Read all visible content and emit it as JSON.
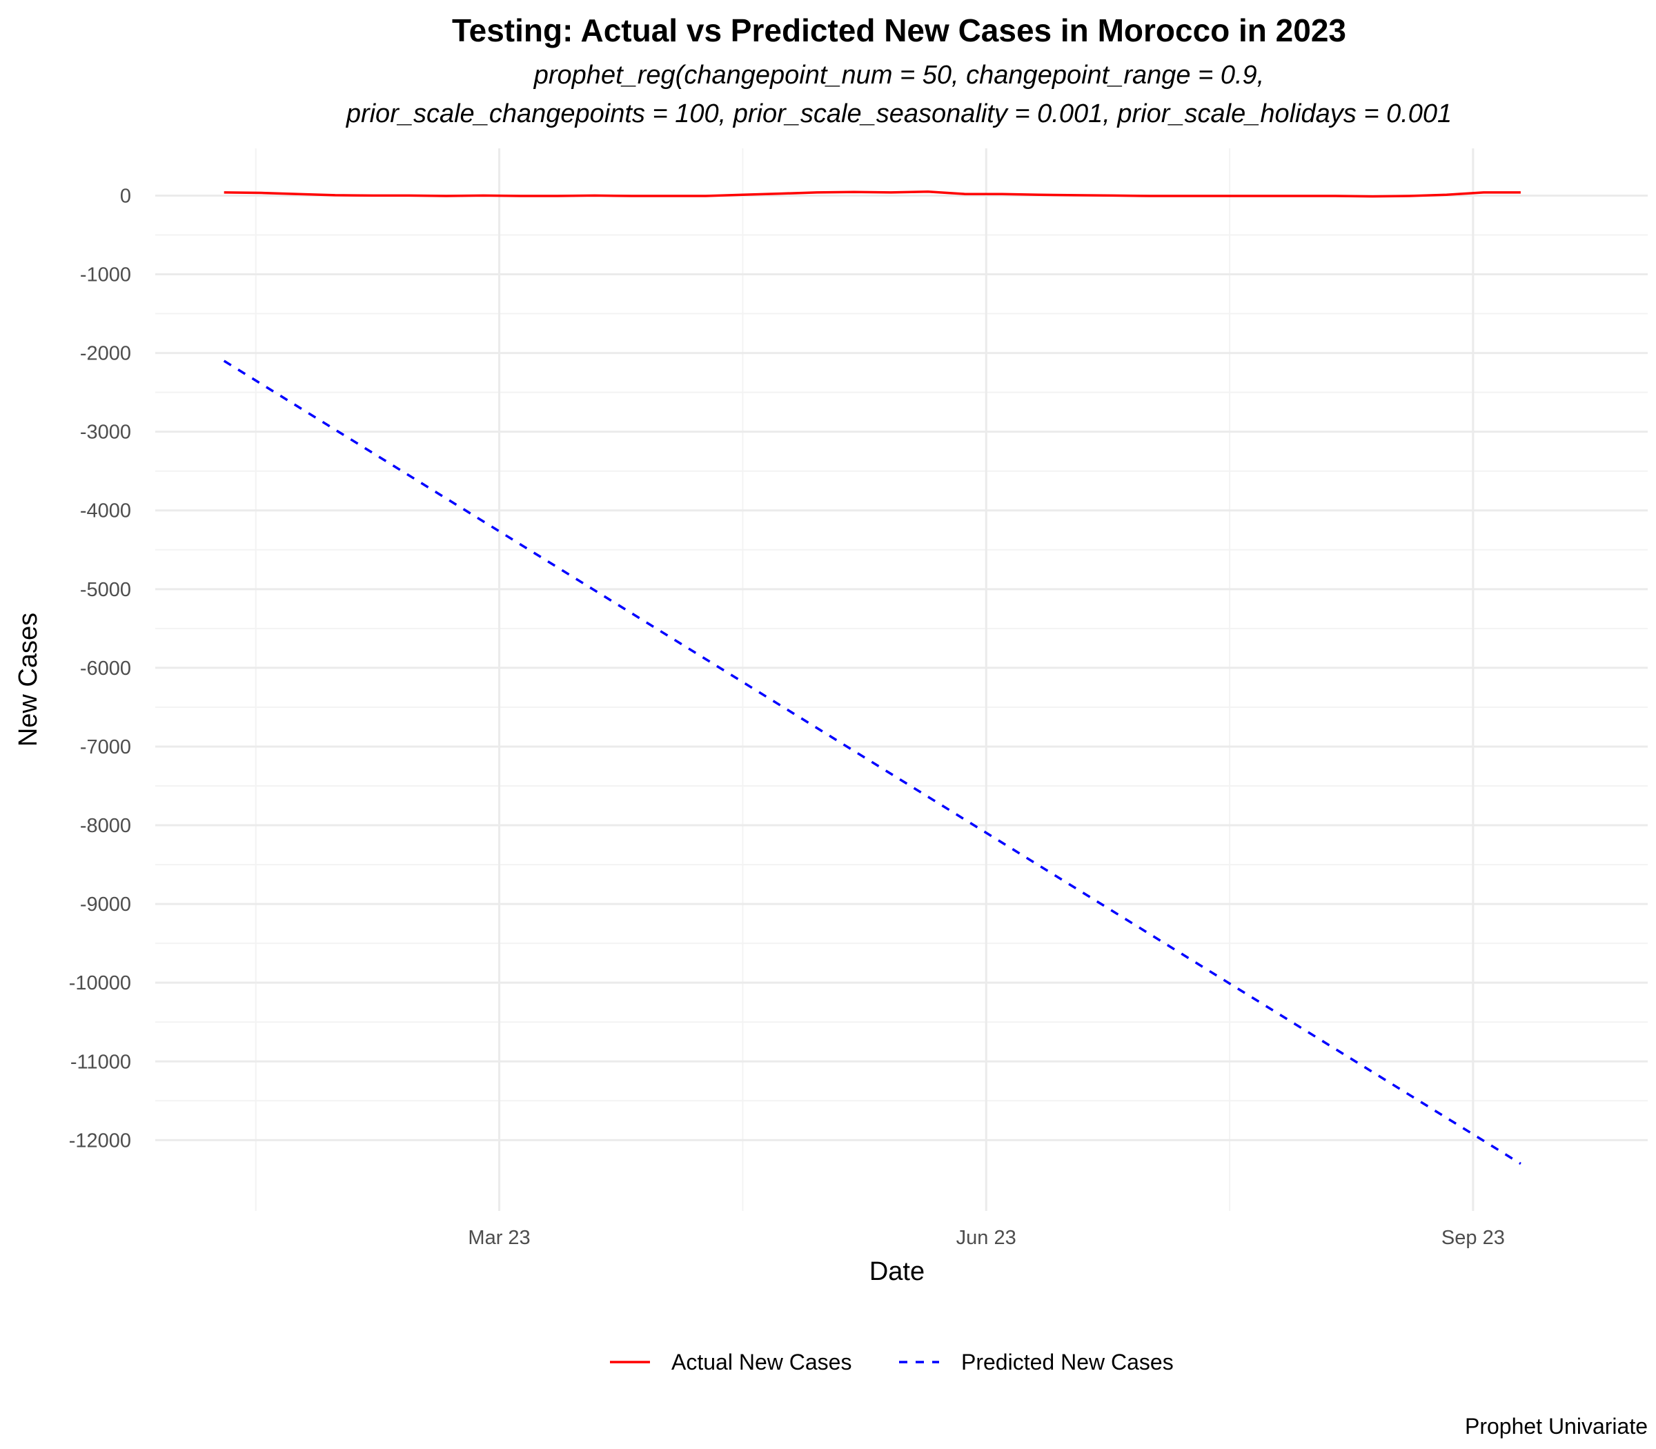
{
  "chart_data": {
    "type": "line",
    "title": "Testing: Actual vs Predicted New Cases in Morocco in 2023",
    "subtitle_lines": [
      "prophet_reg(changepoint_num = 50, changepoint_range = 0.9,",
      "prior_scale_changepoints = 100, prior_scale_seasonality = 0.001, prior_scale_holidays = 0.001"
    ],
    "xlabel": "Date",
    "ylabel": "New Cases",
    "caption": "Prophet Univariate",
    "x_ticks": [
      {
        "date": "2023-03-01",
        "label": "Mar 23"
      },
      {
        "date": "2023-06-01",
        "label": "Jun 23"
      },
      {
        "date": "2023-09-01",
        "label": "Sep 23"
      }
    ],
    "y_ticks": [
      0,
      -1000,
      -2000,
      -3000,
      -4000,
      -5000,
      -6000,
      -7000,
      -8000,
      -9000,
      -10000,
      -11000,
      -12000
    ],
    "ylim": [
      -12900,
      600
    ],
    "xlim": [
      "2022-12-26",
      "2023-10-04"
    ],
    "grid": true,
    "legend_position": "bottom",
    "series": [
      {
        "name": "Actual New Cases",
        "color": "#ff0000",
        "dash": "solid",
        "points": [
          [
            "2023-01-08",
            40
          ],
          [
            "2023-01-15",
            35
          ],
          [
            "2023-01-22",
            20
          ],
          [
            "2023-01-29",
            5
          ],
          [
            "2023-02-05",
            0
          ],
          [
            "2023-02-12",
            0
          ],
          [
            "2023-02-19",
            -5
          ],
          [
            "2023-02-26",
            0
          ],
          [
            "2023-03-05",
            -5
          ],
          [
            "2023-03-12",
            -5
          ],
          [
            "2023-03-19",
            0
          ],
          [
            "2023-03-26",
            -5
          ],
          [
            "2023-04-02",
            -5
          ],
          [
            "2023-04-09",
            -5
          ],
          [
            "2023-04-16",
            10
          ],
          [
            "2023-04-23",
            25
          ],
          [
            "2023-04-30",
            40
          ],
          [
            "2023-05-07",
            45
          ],
          [
            "2023-05-14",
            40
          ],
          [
            "2023-05-21",
            50
          ],
          [
            "2023-05-28",
            20
          ],
          [
            "2023-06-04",
            20
          ],
          [
            "2023-06-11",
            10
          ],
          [
            "2023-06-18",
            5
          ],
          [
            "2023-06-25",
            0
          ],
          [
            "2023-07-02",
            -5
          ],
          [
            "2023-07-09",
            -5
          ],
          [
            "2023-07-16",
            -5
          ],
          [
            "2023-07-23",
            -5
          ],
          [
            "2023-07-30",
            -5
          ],
          [
            "2023-08-06",
            -5
          ],
          [
            "2023-08-13",
            -10
          ],
          [
            "2023-08-20",
            -5
          ],
          [
            "2023-08-27",
            10
          ],
          [
            "2023-09-03",
            40
          ],
          [
            "2023-09-10",
            40
          ]
        ]
      },
      {
        "name": "Predicted New Cases",
        "color": "#0000ff",
        "dash": "dashed",
        "points": [
          [
            "2023-01-08",
            -2100
          ],
          [
            "2023-09-10",
            -12300
          ]
        ]
      }
    ]
  }
}
